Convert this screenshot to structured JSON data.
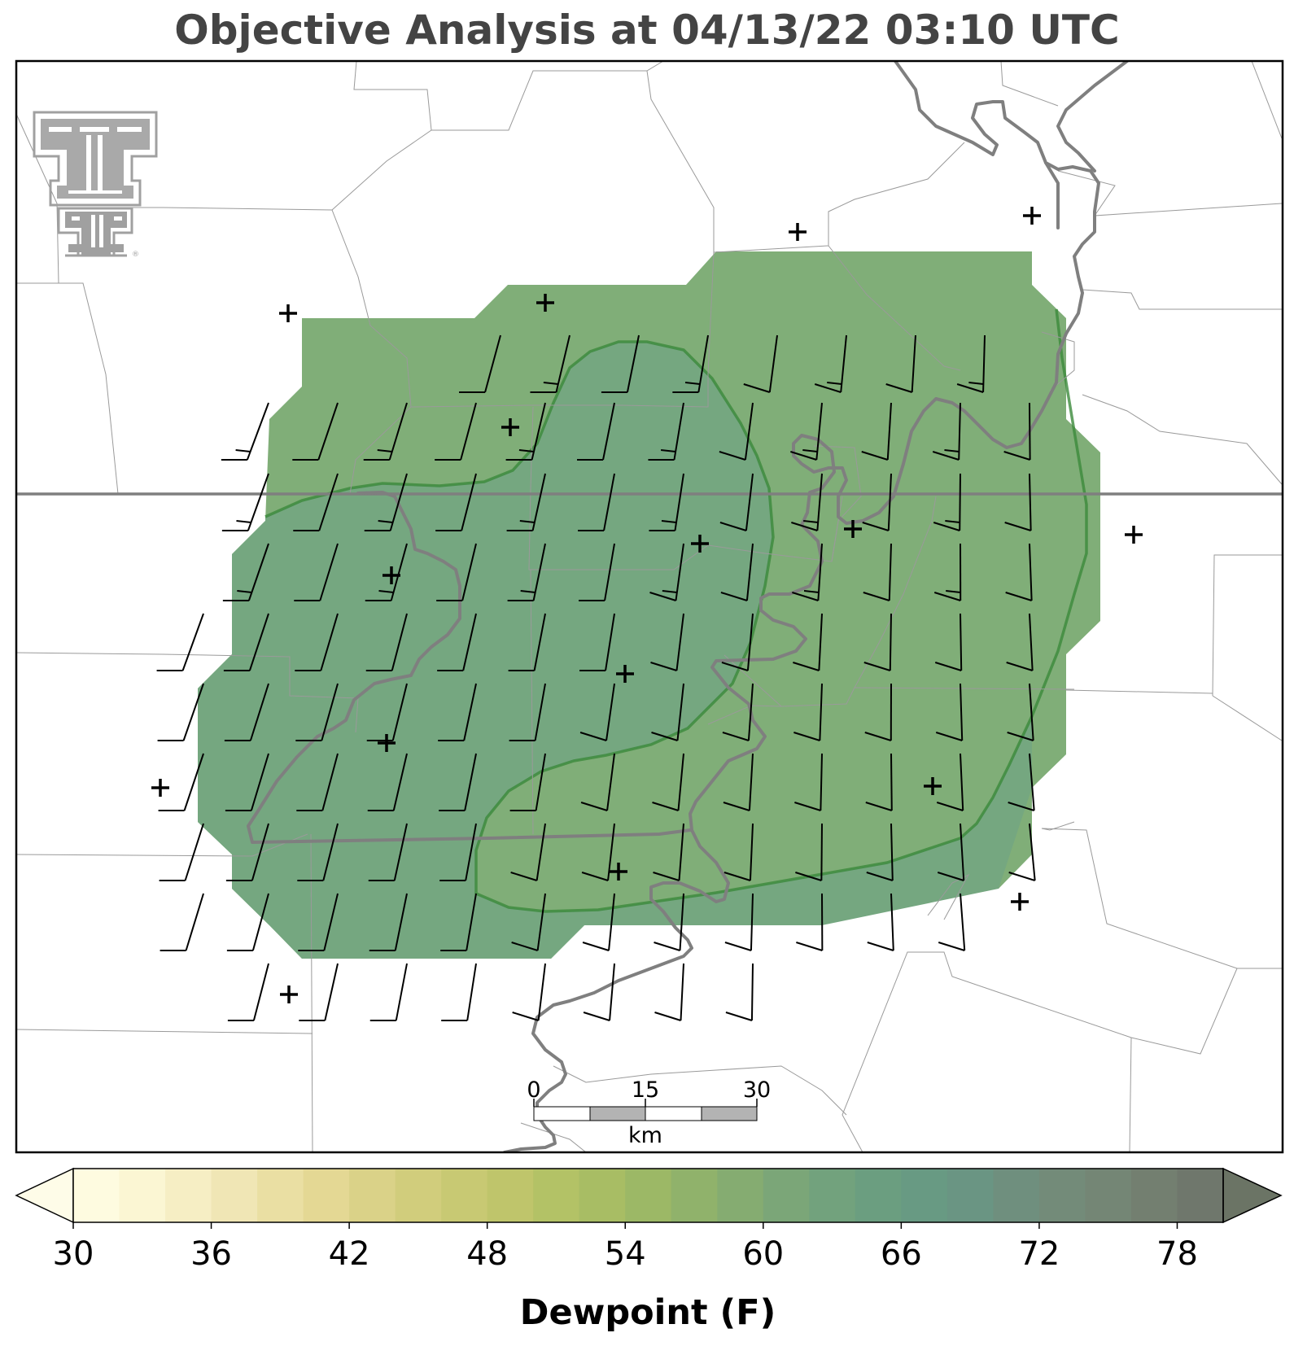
{
  "title": "Objective Analysis at 04/13/22 03:10 UTC",
  "logo": {
    "icon": "texas-tech-double-t-logo",
    "registered_mark": "®",
    "color": "#a0a0a0"
  },
  "scale_bar": {
    "labels": [
      "0",
      "15",
      "30"
    ],
    "unit": "km",
    "fill_colors": [
      "#ffffff",
      "#b3b3b3"
    ]
  },
  "colorbar": {
    "label": "Dewpoint (F)",
    "ticks": [
      "30",
      "36",
      "42",
      "48",
      "54",
      "60",
      "66",
      "72",
      "78"
    ],
    "min": 30,
    "max": 80,
    "step": 2,
    "extend": "both",
    "colors": [
      "#fefbe0",
      "#fbf6d3",
      "#f6eec4",
      "#f0e6b5",
      "#eadfa3",
      "#e4d894",
      "#dad288",
      "#d1cd7c",
      "#c8c973",
      "#bfc56b",
      "#b3c266",
      "#a8bd64",
      "#9cb866",
      "#90b26b",
      "#85ac71",
      "#7ba678",
      "#72a27d",
      "#6b9e80",
      "#689a83",
      "#6a9583",
      "#6f8f7e",
      "#738b79",
      "#748675",
      "#737f70",
      "#6f776c"
    ],
    "under_color": "#fefce8",
    "over_color": "#6b7465"
  },
  "map": {
    "filled_region_colors": {
      "outer": "#80ae78",
      "inner": "#75a780"
    },
    "contour_color": "#3b8a3b",
    "border_color": "#7f7f7f",
    "boundary_color": "#9a9a9a",
    "station_marker": "plus-icon",
    "wind_marker": "wind-barb-icon"
  }
}
